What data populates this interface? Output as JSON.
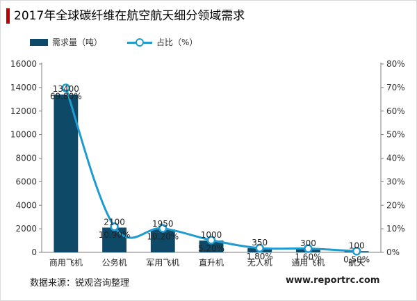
{
  "title": "2017年全球碳纤维在航空航天细分领域需求",
  "source": "数据来源：锐观咨询整理",
  "website": "www.reportrc.com",
  "chart_data": {
    "type": "bar",
    "title": "2017年全球碳纤维在航空航天细分领域需求",
    "categories": [
      "商用飞机",
      "公务机",
      "军用飞机",
      "直升机",
      "无人机",
      "通用飞机",
      "航天"
    ],
    "series": [
      {
        "name": "需求量（吨）",
        "type": "bar",
        "axis": "left",
        "values": [
          13400,
          2100,
          1950,
          1000,
          350,
          300,
          100
        ],
        "labels": [
          "13400",
          "2100",
          "1950",
          "1000",
          "350",
          "300",
          "100"
        ],
        "color": "#0e4a67"
      },
      {
        "name": "占比（%）",
        "type": "line",
        "axis": "right",
        "values": [
          69.8,
          10.9,
          10.2,
          5.2,
          1.8,
          1.6,
          0.5
        ],
        "labels": [
          "69.80%",
          "10.90%",
          "10.20%",
          "5.20%",
          "1.80%",
          "1.60%",
          "0.50%"
        ],
        "color": "#1f9bd0"
      }
    ],
    "y_left": {
      "min": 0,
      "max": 16000,
      "ticks": [
        0,
        2000,
        4000,
        6000,
        8000,
        10000,
        12000,
        14000,
        16000
      ],
      "tick_labels": [
        "0",
        "2000",
        "4000",
        "6000",
        "8000",
        "10000",
        "12000",
        "14000",
        "16000"
      ]
    },
    "y_right": {
      "min": 0,
      "max": 80,
      "ticks": [
        0,
        10,
        20,
        30,
        40,
        50,
        60,
        70,
        80
      ],
      "tick_labels": [
        "0%",
        "10%",
        "20%",
        "30%",
        "40%",
        "50%",
        "60%",
        "70%",
        "80%"
      ]
    },
    "grid": false,
    "legend_position": "top-left"
  }
}
